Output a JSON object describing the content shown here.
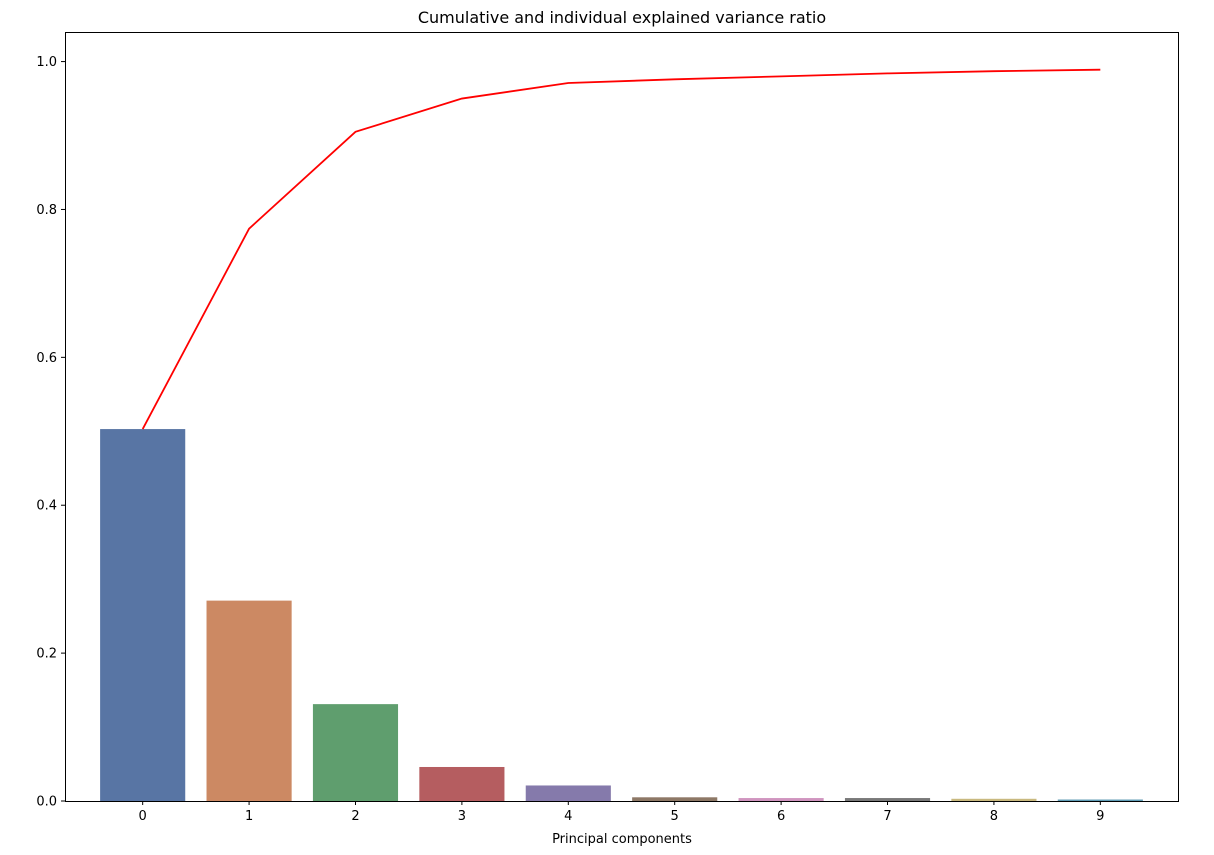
{
  "chart_data": {
    "type": "bar",
    "title": "Cumulative and individual explained variance ratio",
    "xlabel": "Principal components",
    "ylabel": "",
    "categories": [
      "0",
      "1",
      "2",
      "3",
      "4",
      "5",
      "6",
      "7",
      "8",
      "9"
    ],
    "x": [
      0,
      1,
      2,
      3,
      4,
      5,
      6,
      7,
      8,
      9
    ],
    "ylim": [
      0,
      1.04
    ],
    "xlim": [
      -0.73,
      9.73
    ],
    "yticks": [
      0.0,
      0.2,
      0.4,
      0.6,
      0.8,
      1.0
    ],
    "ytick_labels": [
      "0.0",
      "0.2",
      "0.4",
      "0.6",
      "0.8",
      "1.0"
    ],
    "grid": false,
    "legend": "none",
    "series": [
      {
        "type": "bar",
        "values": [
          0.503,
          0.271,
          0.131,
          0.046,
          0.021,
          0.005,
          0.004,
          0.004,
          0.003,
          0.002
        ],
        "colors": [
          "#5875a4",
          "#cc8963",
          "#5f9e6e",
          "#b55d60",
          "#857aab",
          "#8d7866",
          "#d095bf",
          "#797979",
          "#c9b97f",
          "#5f9cb5"
        ]
      },
      {
        "type": "line",
        "values": [
          0.503,
          0.774,
          0.905,
          0.95,
          0.971,
          0.976,
          0.98,
          0.984,
          0.987,
          0.989
        ],
        "color": "#ff0000"
      }
    ]
  }
}
